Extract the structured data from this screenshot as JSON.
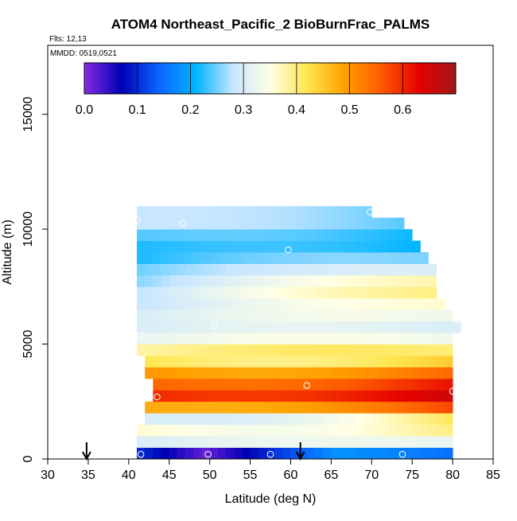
{
  "chart_data": {
    "type": "heatmap",
    "title": "ATOM4 Northeast_Pacific_2 BioBurnFrac_PALMS",
    "subtitle_lines": [
      "Flts: 12,13",
      "MMDD: 0519,0521"
    ],
    "xlabel": "Latitude (deg N)",
    "ylabel": "Altitude (m)",
    "xlim": [
      30,
      85
    ],
    "ylim": [
      0,
      18000
    ],
    "xticks": [
      30,
      35,
      40,
      45,
      50,
      55,
      60,
      65,
      70,
      75,
      80,
      85
    ],
    "yticks": [
      0,
      5000,
      10000,
      15000
    ],
    "colorbar": {
      "min": 0.0,
      "max": 0.7,
      "ticks": [
        0.0,
        0.1,
        0.2,
        0.3,
        0.4,
        0.5,
        0.6
      ],
      "tick_labels": [
        "0.0",
        "0.1",
        "0.2",
        "0.3",
        "0.4",
        "0.5",
        "0.6"
      ],
      "colors": [
        "#8a2be2",
        "#0000b4",
        "#0a64ff",
        "#00b4ff",
        "#c8e6ff",
        "#ffffe6",
        "#ffe650",
        "#ffa000",
        "#ff5a00",
        "#e60000",
        "#a01818"
      ]
    },
    "lat_bins": [
      41.5,
      42.5,
      43.5,
      44.5,
      45.5,
      46.5,
      47.5,
      48.5,
      49.5,
      50.5,
      51.5,
      52.5,
      53.5,
      54.5,
      55.5,
      56.5,
      57.5,
      58.5,
      59.5,
      60.5,
      61.5,
      62.5,
      63.5,
      64.5,
      65.5,
      66.5,
      67.5,
      68.5,
      69.5,
      70.5,
      71.5,
      72.5,
      73.5,
      74.5,
      75.5,
      76.5,
      77.5,
      78.5,
      79.5,
      80.5
    ],
    "alt_bins": [
      250,
      750,
      1250,
      1750,
      2250,
      2750,
      3250,
      3750,
      4250,
      4750,
      5250,
      5750,
      6250,
      6750,
      7250,
      7750,
      8250,
      8750,
      9250,
      9750,
      10250,
      10750
    ],
    "alt_profile_west": [
      0.18,
      0.3,
      0.36,
      0.3,
      0.48,
      0.6,
      0.55,
      0.5,
      0.42,
      0.38,
      0.32,
      0.3,
      0.3,
      0.28,
      0.28,
      0.26,
      0.25,
      0.22,
      0.22,
      0.24,
      0.28,
      0.28
    ],
    "alt_profile_east": [
      0.15,
      0.32,
      0.4,
      0.42,
      0.58,
      0.66,
      0.62,
      0.55,
      0.45,
      0.4,
      0.33,
      0.3,
      0.33,
      0.36,
      0.4,
      0.38,
      0.3,
      0.25,
      0.2,
      0.2,
      0.22,
      0.22
    ],
    "southern_edge_lat": [
      41.5,
      41.5,
      41.5,
      42.0,
      42.5,
      43.0,
      43.0,
      42.5,
      42.0,
      41.5,
      41.5,
      41.5,
      41.5,
      41.5,
      41.5,
      41.5,
      41.5,
      41.5,
      41.5,
      41.5,
      41.0,
      41.5
    ],
    "northern_edge_lat": [
      79.5,
      79.5,
      79.5,
      79.5,
      79.5,
      80.0,
      80.0,
      80.0,
      80.0,
      80.0,
      80.0,
      80.5,
      79.5,
      79.0,
      78.0,
      78.0,
      77.5,
      77.0,
      76.0,
      75.0,
      73.5,
      70.0
    ],
    "low_alt_minimum": {
      "lat": 49.5,
      "alt_index": 0,
      "value": 0.02
    },
    "observation_points": [
      {
        "lat": 41.5,
        "alt": 200
      },
      {
        "lat": 49.8,
        "alt": 200
      },
      {
        "lat": 57.5,
        "alt": 200
      },
      {
        "lat": 73.8,
        "alt": 200
      },
      {
        "lat": 43.5,
        "alt": 2700
      },
      {
        "lat": 62.0,
        "alt": 3200
      },
      {
        "lat": 80.0,
        "alt": 2950
      },
      {
        "lat": 41.5,
        "alt": 5350
      },
      {
        "lat": 50.6,
        "alt": 5800
      },
      {
        "lat": 80.5,
        "alt": 6050
      },
      {
        "lat": 59.7,
        "alt": 9100
      },
      {
        "lat": 46.7,
        "alt": 10250
      },
      {
        "lat": 69.8,
        "alt": 10750
      },
      {
        "lat": 41.0,
        "alt": 10400
      }
    ],
    "flight_arrows_lat": [
      34.8,
      61.2
    ]
  }
}
